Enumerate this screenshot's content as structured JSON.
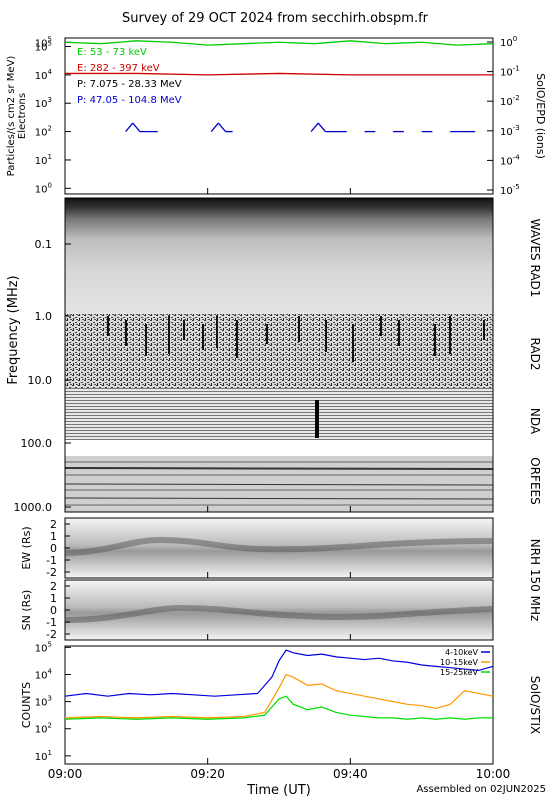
{
  "title": "Survey of 29 OCT 2024 from secchirh.obspm.fr",
  "footer": "Assembled on 02JUN2025",
  "colors": {
    "green": "#00cc00",
    "red": "#cc0000",
    "blue": "#0000cc",
    "stix_blue": "#0000dd",
    "stix_orange": "#ff9900",
    "stix_green": "#00dd00"
  },
  "time_axis": {
    "label": "Time (UT)",
    "ticks": [
      "09:00",
      "09:20",
      "09:40",
      "10:00"
    ],
    "range_min": [
      0,
      60
    ]
  },
  "epd_panel": {
    "ylabel_left_1": "Particles/(s cm2 sr MeV)",
    "ylabel_left_2": "Electrons",
    "ylabel_right": "SolO/EPD (ions)",
    "left_ticks_exp": [
      "0",
      "1",
      "2",
      "3",
      "4",
      "5",
      "5"
    ],
    "right_ticks_exp": [
      "0",
      "-1",
      "-2",
      "-3",
      "-4",
      "-5"
    ],
    "base_label": "10",
    "legend": [
      {
        "text": "E: 53 - 73 keV",
        "color": "#00cc00"
      },
      {
        "text": "E: 282 - 397 keV",
        "color": "#cc0000"
      },
      {
        "text": "P: 7.075 - 28.33 MeV",
        "color": "#000000"
      },
      {
        "text": "P: 47.05 - 104.8 MeV",
        "color": "#0000cc"
      }
    ]
  },
  "spectro_panel": {
    "ylabel": "Frequency (MHz)",
    "ticks": [
      "0.1",
      "1.0",
      "10.0",
      "100.0",
      "1000.0"
    ],
    "right_labels": [
      "WAVES RAD1",
      "RAD2",
      "NDA",
      "ORFEES"
    ]
  },
  "nrh_panel": {
    "ew_label": "EW (Rs)",
    "sn_label": "SN (Rs)",
    "ticks": [
      "2",
      "1",
      "0",
      "-1",
      "-2"
    ],
    "right_label": "NRH 150 MHz"
  },
  "stix_panel": {
    "ylabel": "COUNTS",
    "right_label": "SolO/STIX",
    "ticks_exp": [
      "5",
      "4",
      "3",
      "2",
      "1"
    ],
    "base_label": "10",
    "legend": [
      {
        "text": "4-10keV",
        "color": "#0000dd"
      },
      {
        "text": "10-15keV",
        "color": "#ff9900"
      },
      {
        "text": "15-25keV",
        "color": "#00dd00"
      }
    ]
  },
  "chart_data": [
    {
      "type": "line",
      "title": "SolO/EPD",
      "x_unit": "minutes after 09:00",
      "ylim_log10": [
        -0.2,
        5.3
      ],
      "series": [
        {
          "name": "E: 53 - 73 keV",
          "color": "#00cc00",
          "x": [
            0,
            5,
            10,
            15,
            20,
            25,
            30,
            35,
            40,
            45,
            50,
            55,
            60
          ],
          "log10_y": [
            5.15,
            5.1,
            5.2,
            5.15,
            5.05,
            5.1,
            5.15,
            5.1,
            5.2,
            5.1,
            5.15,
            5.05,
            5.1
          ]
        },
        {
          "name": "E: 282 - 397 keV",
          "color": "#cc0000",
          "x": [
            0,
            10,
            20,
            30,
            40,
            50,
            60
          ],
          "log10_y": [
            4.05,
            4.05,
            4.0,
            4.05,
            4.0,
            4.0,
            4.0
          ]
        },
        {
          "name": "P: 47.05 - 104.8 MeV",
          "color": "#0000cc",
          "x": [
            8.5,
            9.5,
            10.5,
            12,
            13,
            20.5,
            21.5,
            22.5,
            23.5,
            34.5,
            35.5,
            36.5,
            38,
            39.5,
            42,
            43.5,
            46,
            47.5,
            50,
            51.5,
            54,
            55,
            56.5,
            57.5
          ],
          "log10_y": [
            2.0,
            2.3,
            2.0,
            2.0,
            2.0,
            2.0,
            2.3,
            2.0,
            2.0,
            2.0,
            2.3,
            2.0,
            2.0,
            2.0,
            2.0,
            2.0,
            2.0,
            2.0,
            2.0,
            2.0,
            2.0,
            2.0,
            2.0,
            2.0
          ]
        }
      ]
    },
    {
      "type": "line",
      "title": "SolO/STIX",
      "x_unit": "minutes after 09:00",
      "ylim_log10": [
        0.7,
        5.05
      ],
      "series": [
        {
          "name": "4-10keV",
          "color": "#0000dd",
          "x": [
            0,
            3,
            6,
            9,
            12,
            15,
            18,
            21,
            24,
            27,
            29,
            30,
            31,
            32,
            34,
            36,
            38,
            40,
            42,
            44,
            46,
            48,
            50,
            52,
            54,
            56,
            58,
            60
          ],
          "log10_y": [
            3.2,
            3.3,
            3.2,
            3.3,
            3.25,
            3.3,
            3.25,
            3.2,
            3.25,
            3.3,
            3.9,
            4.5,
            4.9,
            4.8,
            4.7,
            4.75,
            4.65,
            4.6,
            4.55,
            4.6,
            4.5,
            4.45,
            4.35,
            4.3,
            4.25,
            4.2,
            4.15,
            4.3
          ]
        },
        {
          "name": "10-15keV",
          "color": "#ff9900",
          "x": [
            0,
            5,
            10,
            15,
            20,
            25,
            28,
            30,
            31,
            32,
            34,
            36,
            38,
            40,
            42,
            44,
            46,
            48,
            50,
            52,
            54,
            56,
            58,
            60
          ],
          "log10_y": [
            2.4,
            2.45,
            2.4,
            2.45,
            2.4,
            2.45,
            2.6,
            3.5,
            4.0,
            3.9,
            3.6,
            3.65,
            3.4,
            3.3,
            3.2,
            3.1,
            3.0,
            2.9,
            2.85,
            2.75,
            2.9,
            3.4,
            3.3,
            3.2
          ]
        },
        {
          "name": "15-25keV",
          "color": "#00dd00",
          "x": [
            0,
            5,
            10,
            15,
            20,
            25,
            28,
            30,
            31,
            32,
            34,
            36,
            38,
            40,
            42,
            44,
            46,
            48,
            50,
            52,
            54,
            56,
            58,
            60
          ],
          "log10_y": [
            2.35,
            2.4,
            2.35,
            2.4,
            2.35,
            2.4,
            2.5,
            3.1,
            3.2,
            2.9,
            2.7,
            2.8,
            2.6,
            2.5,
            2.45,
            2.4,
            2.4,
            2.35,
            2.4,
            2.35,
            2.4,
            2.35,
            2.4,
            2.4
          ]
        }
      ]
    }
  ]
}
